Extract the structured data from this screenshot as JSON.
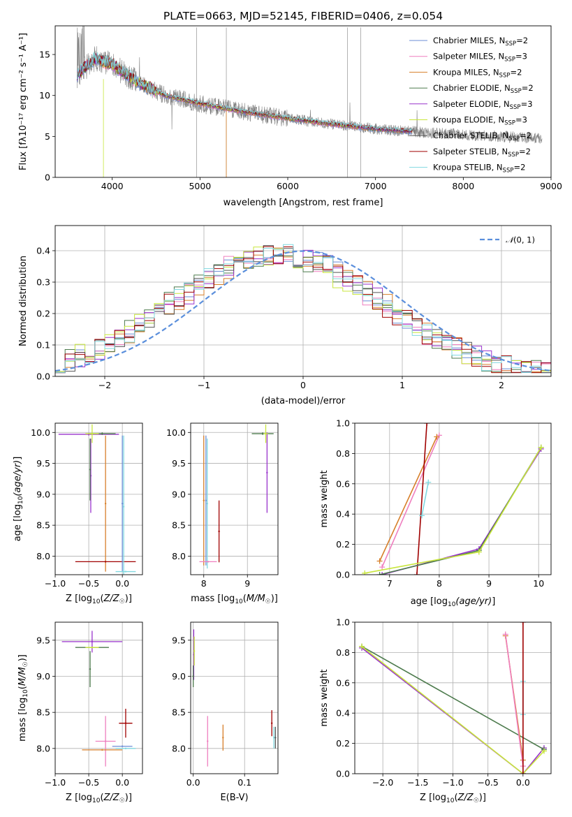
{
  "title": "PLATE=0663, MJD=52145, FIBERID=0406, z=0.054",
  "colors": {
    "Chabrier MILES": "#6b8dd6",
    "Salpeter MILES": "#ef7fbf",
    "Kroupa MILES": "#d77f2a",
    "Chabrier ELODIE": "#4c7a4c",
    "Salpeter ELODIE": "#9932cc",
    "Kroupa ELODIE": "#c8e63c",
    "Chabrier STELIB": "#555555",
    "Salpeter STELIB": "#a00000",
    "Kroupa STELIB": "#80d8e0",
    "data": "#808080",
    "gauss": "#5b8fdc"
  },
  "chart_data": [
    {
      "type": "line",
      "xlabel": "wavelength [Angstrom, rest frame]",
      "ylabel": "Flux [fλ10⁻¹⁷ erg cm⁻² s⁻¹ A⁻¹]",
      "xlim": [
        3350,
        9000
      ],
      "ylim": [
        0,
        18.5
      ],
      "xticks": [
        4000,
        5000,
        6000,
        7000,
        8000,
        9000
      ],
      "yticks": [
        0,
        5,
        10,
        15
      ],
      "legend_position": "upper-right",
      "legend": [
        "Chabrier MILES, N_SSP=2",
        "Salpeter MILES, N_SSP=3",
        "Kroupa MILES, N_SSP=2",
        "Chabrier ELODIE, N_SSP=2",
        "Salpeter ELODIE, N_SSP=3",
        "Kroupa ELODIE, N_SSP=3",
        "Chabrier STELIB, N_SSP=2",
        "Salpeter STELIB, N_SSP=2",
        "Kroupa STELIB, N_SSP=2"
      ],
      "legend_parts": [
        [
          "Chabrier MILES, N",
          "SSP",
          "=2"
        ],
        [
          "Salpeter MILES, N",
          "SSP",
          "=3"
        ],
        [
          "Kroupa MILES, N",
          "SSP",
          "=2"
        ],
        [
          "Chabrier ELODIE, N",
          "SSP",
          "=2"
        ],
        [
          "Salpeter ELODIE, N",
          "SSP",
          "=3"
        ],
        [
          "Kroupa ELODIE, N",
          "SSP",
          "=3"
        ],
        [
          "Chabrier STELIB, N",
          "SSP",
          "=2"
        ],
        [
          "Salpeter STELIB, N",
          "SSP",
          "=2"
        ],
        [
          "Kroupa STELIB, N",
          "SSP",
          "=2"
        ]
      ],
      "continuum": {
        "x": [
          3600,
          3800,
          4000,
          4300,
          4600,
          5000,
          5500,
          6000,
          6500,
          7000,
          7400,
          8000,
          8900
        ],
        "y": [
          12.5,
          14.5,
          13.8,
          11.5,
          10.0,
          9.0,
          8.0,
          7.2,
          6.5,
          5.9,
          5.6,
          5.2,
          4.8
        ]
      },
      "model_ranges": [
        [
          3600,
          7420
        ],
        [
          3900,
          6800
        ],
        [
          3650,
          7420
        ],
        [
          3600,
          7420
        ],
        [
          3600,
          7420
        ],
        [
          3900,
          6800
        ],
        [
          3600,
          7420
        ],
        [
          3600,
          7420
        ],
        [
          3600,
          7420
        ]
      ]
    },
    {
      "type": "histogram",
      "xlabel": "(data-model)/error",
      "ylabel": "Normed distribution",
      "xlim": [
        -2.5,
        2.5
      ],
      "ylim": [
        0,
        0.48
      ],
      "xticks": [
        -2,
        -1,
        0,
        1,
        2
      ],
      "yticks": [
        0.0,
        0.1,
        0.2,
        0.3,
        0.4
      ],
      "legend": "𝒩(0, 1)",
      "legend_position": "upper-right",
      "bin_width": 0.1,
      "skew": [
        0.0,
        0.03,
        -0.02,
        0.05,
        -0.04,
        0.08,
        -0.03,
        0.02,
        0.01
      ]
    },
    {
      "type": "scatter",
      "name": "age-vs-Z",
      "xlabel": "Z [log10(Z/Z☉)]",
      "ylabel": "age [log10(age/yr)]",
      "xlim": [
        -1.0,
        0.3
      ],
      "ylim": [
        7.7,
        10.15
      ],
      "xticks": [
        -1.0,
        -0.5,
        0.0
      ],
      "yticks": [
        8.0,
        8.5,
        9.0,
        9.5,
        10.0
      ],
      "errorbars": [
        {
          "c": "Salpeter ELODIE",
          "x": -0.5,
          "y": 9.97,
          "xerr": 0.45,
          "yerr": 0.02
        },
        {
          "c": "Chabrier ELODIE",
          "x": -0.3,
          "y": 9.98,
          "xerr": 0.2,
          "yerr": 0.02
        },
        {
          "c": "Kroupa ELODIE",
          "x": -0.45,
          "y": 9.98,
          "xerr": 0.1,
          "yerr": 0.15
        },
        {
          "c": "Salpeter ELODIE",
          "x": -0.47,
          "y": 9.3,
          "xerr": 0.0,
          "yerr": 0.6
        },
        {
          "c": "Chabrier ELODIE",
          "x": -0.48,
          "y": 9.4,
          "xerr": 0.0,
          "yerr": 0.5
        },
        {
          "c": "Kroupa MILES",
          "x": -0.25,
          "y": 8.85,
          "xerr": 0.0,
          "yerr": 1.1
        },
        {
          "c": "Salpeter STELIB",
          "x": -0.25,
          "y": 7.91,
          "xerr": 0.45,
          "yerr": 0.0
        },
        {
          "c": "Chabrier MILES",
          "x": 0.0,
          "y": 8.85,
          "xerr": 0.0,
          "yerr": 1.1
        },
        {
          "c": "Kroupa STELIB",
          "x": 0.02,
          "y": 8.8,
          "xerr": 0.0,
          "yerr": 1.15
        },
        {
          "c": "Kroupa STELIB",
          "x": 0.05,
          "y": 7.75,
          "xerr": 0.15,
          "yerr": 0.0
        }
      ]
    },
    {
      "type": "scatter",
      "name": "age-vs-mass",
      "xlabel": "mass [log10(M/M☉)]",
      "ylabel": "",
      "xlim": [
        7.7,
        9.7
      ],
      "ylim": [
        7.7,
        10.15
      ],
      "xticks": [
        8,
        9
      ],
      "yticks": [
        8.0,
        8.5,
        9.0,
        9.5,
        10.0
      ],
      "errorbars": [
        {
          "c": "Kroupa MILES",
          "x": 8.0,
          "y": 8.9,
          "xerr": 0.0,
          "yerr": 1.05
        },
        {
          "c": "Chabrier MILES",
          "x": 8.05,
          "y": 8.9,
          "xerr": 0.0,
          "yerr": 1.05
        },
        {
          "c": "Kroupa STELIB",
          "x": 8.08,
          "y": 8.85,
          "xerr": 0.0,
          "yerr": 1.05
        },
        {
          "c": "Salpeter STELIB",
          "x": 8.35,
          "y": 8.4,
          "xerr": 0.0,
          "yerr": 0.5
        },
        {
          "c": "Salpeter MILES",
          "x": 8.1,
          "y": 7.91,
          "xerr": 0.2,
          "yerr": 0.0
        },
        {
          "c": "Chabrier ELODIE",
          "x": 9.35,
          "y": 9.98,
          "xerr": 0.25,
          "yerr": 0.02
        },
        {
          "c": "Salpeter ELODIE",
          "x": 9.45,
          "y": 9.35,
          "xerr": 0.0,
          "yerr": 0.65
        },
        {
          "c": "Kroupa ELODIE",
          "x": 9.42,
          "y": 9.98,
          "xerr": 0.05,
          "yerr": 0.15
        }
      ]
    },
    {
      "type": "line",
      "name": "mass-weight-vs-age",
      "xlabel": "age [log10(age/yr)]",
      "ylabel": "mass weight",
      "xlim": [
        6.3,
        10.25
      ],
      "ylim": [
        0,
        1
      ],
      "xticks": [
        7,
        8,
        9,
        10
      ],
      "yticks": [
        0.0,
        0.2,
        0.4,
        0.6,
        0.8,
        1.0
      ],
      "series": [
        {
          "c": "Salpeter MILES",
          "x": [
            6.85,
            8.0
          ],
          "y": [
            0.05,
            0.92
          ]
        },
        {
          "c": "Kroupa MILES",
          "x": [
            6.8,
            7.95
          ],
          "y": [
            0.09,
            0.91
          ]
        },
        {
          "c": "Salpeter STELIB",
          "x": [
            7.55,
            7.75
          ],
          "y": [
            0.0,
            1.0
          ]
        },
        {
          "c": "Kroupa STELIB",
          "x": [
            7.65,
            7.78
          ],
          "y": [
            0.39,
            0.61
          ]
        },
        {
          "c": "Salpeter ELODIE",
          "x": [
            6.85,
            8.8,
            10.05
          ],
          "y": [
            0.0,
            0.17,
            0.83
          ]
        },
        {
          "c": "Chabrier ELODIE",
          "x": [
            6.8,
            8.8,
            10.05
          ],
          "y": [
            0.0,
            0.16,
            0.84
          ]
        },
        {
          "c": "Kroupa ELODIE",
          "x": [
            6.5,
            8.8,
            10.05
          ],
          "y": [
            0.01,
            0.15,
            0.84
          ]
        }
      ]
    },
    {
      "type": "scatter",
      "name": "mass-vs-Z",
      "xlabel": "Z [log10(Z/Z☉)]",
      "ylabel": "mass [log10(M/M☉)]",
      "xlim": [
        -1.0,
        0.3
      ],
      "ylim": [
        7.65,
        9.75
      ],
      "xticks": [
        -1.0,
        -0.5,
        0.0
      ],
      "yticks": [
        8.0,
        8.5,
        9.0,
        9.5
      ],
      "errorbars": [
        {
          "c": "Salpeter ELODIE",
          "x": -0.45,
          "y": 9.48,
          "xerr": 0.45,
          "yerr": 0.15
        },
        {
          "c": "Chabrier ELODIE",
          "x": -0.45,
          "y": 9.4,
          "xerr": 0.25,
          "yerr": 0.0
        },
        {
          "c": "Kroupa ELODIE",
          "x": -0.45,
          "y": 9.4,
          "xerr": 0.1,
          "yerr": 0.0
        },
        {
          "c": "Chabrier ELODIE",
          "x": -0.48,
          "y": 9.1,
          "xerr": 0.0,
          "yerr": 0.25
        },
        {
          "c": "Salpeter STELIB",
          "x": 0.05,
          "y": 8.35,
          "xerr": 0.1,
          "yerr": 0.2
        },
        {
          "c": "Salpeter MILES",
          "x": -0.25,
          "y": 8.1,
          "xerr": 0.15,
          "yerr": 0.35
        },
        {
          "c": "Kroupa MILES",
          "x": -0.3,
          "y": 7.98,
          "xerr": 0.3,
          "yerr": 0.0
        },
        {
          "c": "Chabrier MILES",
          "x": 0.0,
          "y": 8.03,
          "xerr": 0.15,
          "yerr": 0.0
        },
        {
          "c": "Kroupa STELIB",
          "x": 0.05,
          "y": 8.0,
          "xerr": 0.15,
          "yerr": 0.0
        }
      ]
    },
    {
      "type": "scatter",
      "name": "mass-vs-EBV",
      "xlabel": "E(B-V)",
      "ylabel": "",
      "xlim": [
        -0.005,
        0.165
      ],
      "ylim": [
        7.65,
        9.75
      ],
      "xticks": [
        0.0,
        0.1
      ],
      "yticks": [
        8.0,
        8.5,
        9.0,
        9.5
      ],
      "errorbars": [
        {
          "c": "Salpeter ELODIE",
          "x": 0.001,
          "y": 9.3,
          "xerr": 0.0,
          "yerr": 0.35
        },
        {
          "c": "Kroupa ELODIE",
          "x": 0.002,
          "y": 9.35,
          "xerr": 0.0,
          "yerr": 0.2
        },
        {
          "c": "Chabrier ELODIE",
          "x": 0.0,
          "y": 9.0,
          "xerr": 0.0,
          "yerr": 0.15
        },
        {
          "c": "Salpeter MILES",
          "x": 0.028,
          "y": 8.1,
          "xerr": 0.0,
          "yerr": 0.35
        },
        {
          "c": "Kroupa MILES",
          "x": 0.058,
          "y": 8.15,
          "xerr": 0.0,
          "yerr": 0.18
        },
        {
          "c": "Salpeter STELIB",
          "x": 0.153,
          "y": 8.35,
          "xerr": 0.0,
          "yerr": 0.18
        },
        {
          "c": "Kroupa STELIB",
          "x": 0.157,
          "y": 8.15,
          "xerr": 0.0,
          "yerr": 0.15
        },
        {
          "c": "Chabrier STELIB",
          "x": 0.16,
          "y": 8.15,
          "xerr": 0.0,
          "yerr": 0.15
        }
      ]
    },
    {
      "type": "line",
      "name": "mass-weight-vs-Z",
      "xlabel": "Z [log10(Z/Z☉)]",
      "ylabel": "mass weight",
      "xlim": [
        -2.4,
        0.4
      ],
      "ylim": [
        0,
        1
      ],
      "xticks": [
        -2.0,
        -1.5,
        -1.0,
        -0.5,
        0.0
      ],
      "yticks": [
        0.0,
        0.2,
        0.4,
        0.6,
        0.8,
        1.0
      ],
      "series": [
        {
          "c": "Salpeter ELODIE",
          "x": [
            -2.3,
            0.0,
            0.3
          ],
          "y": [
            0.83,
            0.0,
            0.17
          ]
        },
        {
          "c": "Chabrier ELODIE",
          "x": [
            -2.3,
            0.3
          ],
          "y": [
            0.84,
            0.16
          ]
        },
        {
          "c": "Kroupa ELODIE",
          "x": [
            -2.3,
            0.0,
            0.3
          ],
          "y": [
            0.84,
            0.0,
            0.15
          ]
        },
        {
          "c": "Kroupa MILES",
          "x": [
            -0.25,
            0.0
          ],
          "y": [
            0.91,
            0.09
          ]
        },
        {
          "c": "Salpeter MILES",
          "x": [
            -0.25,
            0.0
          ],
          "y": [
            0.92,
            0.05
          ]
        },
        {
          "c": "Kroupa STELIB",
          "x": [
            0.0,
            0.0
          ],
          "y": [
            0.39,
            0.61
          ]
        },
        {
          "c": "Salpeter STELIB",
          "x": [
            0.0,
            0.0
          ],
          "y": [
            0.0,
            1.0
          ]
        }
      ]
    }
  ]
}
